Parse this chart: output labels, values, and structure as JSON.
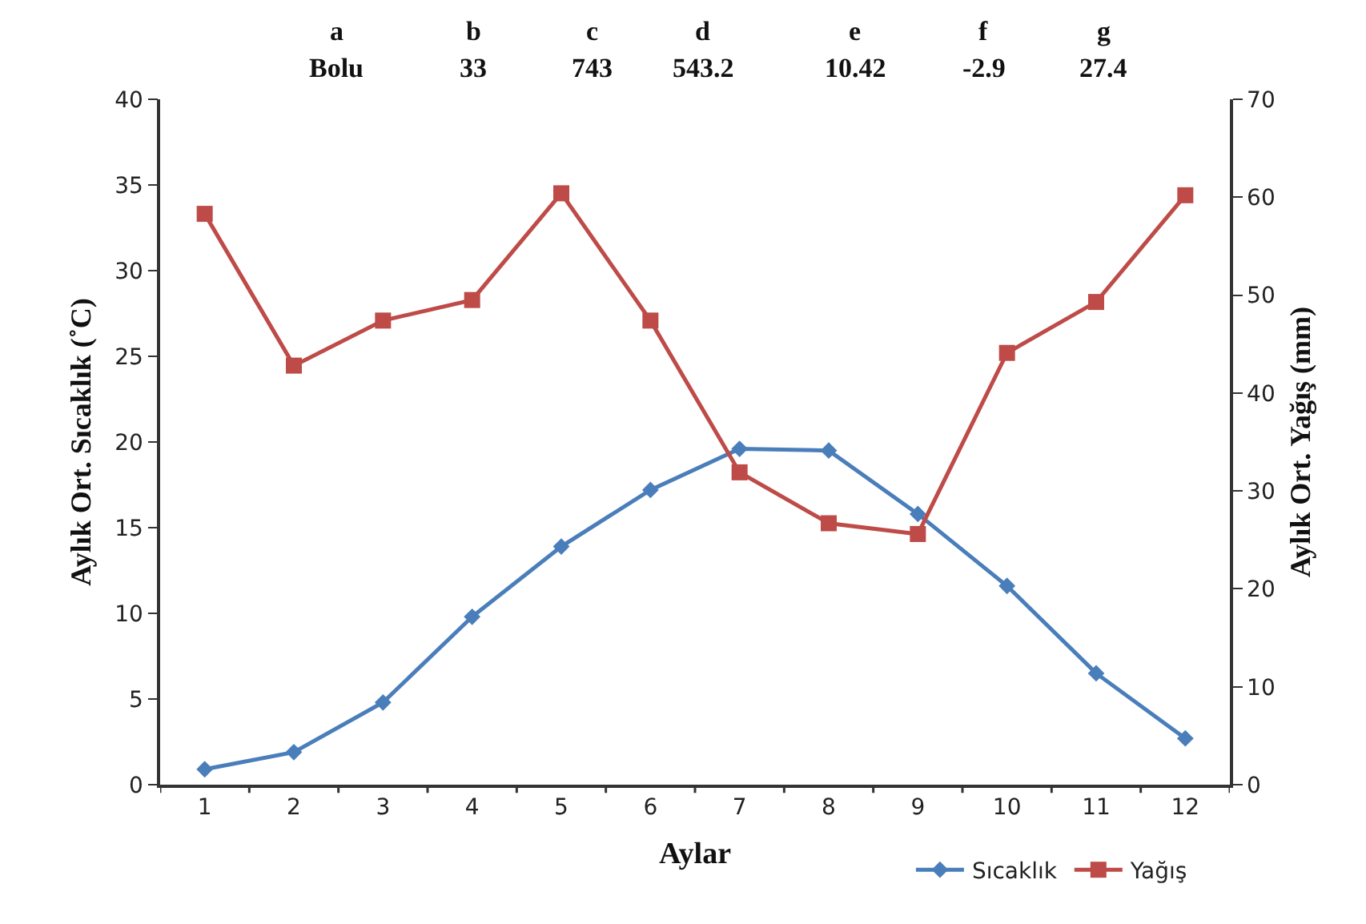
{
  "chart_data": {
    "type": "line",
    "xlabel": "Aylar",
    "ylabel": "Aylık Ort. Sıcaklık (˚C)",
    "y2label": "Aylık Ort. Yağış (mm)",
    "x": [
      1,
      2,
      3,
      4,
      5,
      6,
      7,
      8,
      9,
      10,
      11,
      12
    ],
    "xlim": [
      0.5,
      12.5
    ],
    "xticks": [
      1,
      2,
      3,
      4,
      5,
      6,
      7,
      8,
      9,
      10,
      11,
      12
    ],
    "series": [
      {
        "name": "Sıcaklık",
        "color": "#4a7ebb",
        "marker": "diamond",
        "values": [
          0.9,
          1.9,
          4.8,
          9.8,
          13.9,
          17.2,
          19.6,
          19.5,
          15.8,
          11.6,
          6.5,
          2.7
        ]
      },
      {
        "name": "Yağış",
        "color": "#be4b48",
        "marker": "square",
        "axis": "y2",
        "values": [
          58.3,
          42.8,
          47.4,
          49.5,
          60.4,
          47.4,
          31.9,
          26.7,
          25.6,
          44.1,
          49.3,
          60.2
        ]
      }
    ],
    "ylim": [
      0,
      40
    ],
    "yticks": [
      0,
      5,
      10,
      15,
      20,
      25,
      30,
      35,
      40
    ],
    "y2lim": [
      0,
      70
    ],
    "y2ticks": [
      0,
      10,
      20,
      30,
      40,
      50,
      60,
      70
    ],
    "grid": false,
    "legend": "bottom",
    "annotations": [
      "a",
      "b",
      "c",
      "d",
      "e",
      "f",
      "g",
      "Bolu",
      "33",
      "743",
      "543.2",
      "10.42",
      "-2.9",
      "27.4"
    ]
  }
}
